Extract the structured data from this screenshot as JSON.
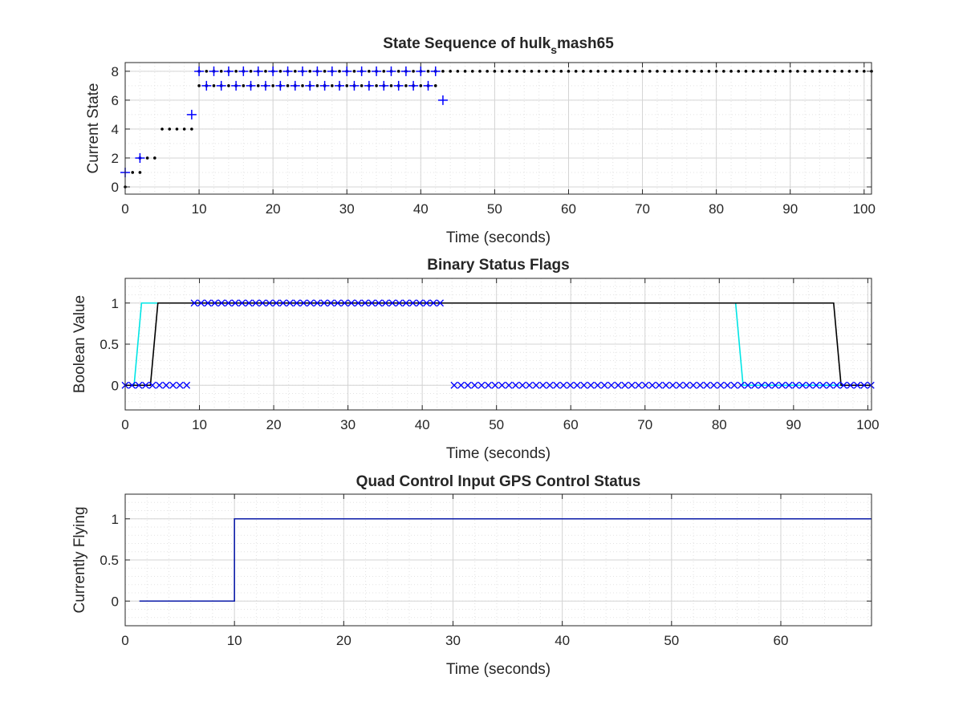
{
  "colors": {
    "black": "#000000",
    "blue": "#0000ff",
    "cyan": "#00e5e5",
    "navy": "#0a1aa8",
    "grid_major": "#d4d4d4",
    "grid_minor": "#e3e3e3",
    "axis": "#262626"
  },
  "chart_data": [
    {
      "type": "scatter",
      "title_main": "State Sequence of hulk",
      "title_sub": "s",
      "title_tail": "mash65",
      "xlabel": "Time (seconds)",
      "ylabel": "Current State",
      "xlim": [
        0,
        101
      ],
      "ylim": [
        -0.5,
        8.6
      ],
      "xticks": [
        0,
        10,
        20,
        30,
        40,
        50,
        60,
        70,
        80,
        90,
        100
      ],
      "yticks": [
        0,
        2,
        4,
        6,
        8
      ],
      "grid": "major and minor",
      "series": [
        {
          "marker": "dot",
          "color": "black",
          "points": [
            [
              0,
              0
            ],
            [
              1,
              1
            ],
            [
              2,
              1
            ],
            [
              2,
              2
            ],
            [
              3,
              2
            ],
            [
              4,
              2
            ],
            [
              5,
              4
            ],
            [
              6,
              4
            ],
            [
              7,
              4
            ],
            [
              8,
              4
            ],
            [
              9,
              4
            ],
            [
              10,
              7
            ],
            [
              11,
              7
            ],
            [
              12,
              7
            ],
            [
              13,
              7
            ],
            [
              14,
              7
            ],
            [
              15,
              7
            ],
            [
              16,
              7
            ],
            [
              17,
              7
            ],
            [
              18,
              7
            ],
            [
              19,
              7
            ],
            [
              20,
              7
            ],
            [
              21,
              7
            ],
            [
              22,
              7
            ],
            [
              23,
              7
            ],
            [
              24,
              7
            ],
            [
              25,
              7
            ],
            [
              26,
              7
            ],
            [
              27,
              7
            ],
            [
              28,
              7
            ],
            [
              29,
              7
            ],
            [
              30,
              7
            ],
            [
              31,
              7
            ],
            [
              32,
              7
            ],
            [
              33,
              7
            ],
            [
              34,
              7
            ],
            [
              35,
              7
            ],
            [
              36,
              7
            ],
            [
              37,
              7
            ],
            [
              38,
              7
            ],
            [
              39,
              7
            ],
            [
              40,
              7
            ],
            [
              41,
              7
            ],
            [
              42,
              7
            ],
            [
              10,
              8
            ],
            [
              11,
              8
            ],
            [
              12,
              8
            ],
            [
              13,
              8
            ],
            [
              14,
              8
            ],
            [
              15,
              8
            ],
            [
              16,
              8
            ],
            [
              17,
              8
            ],
            [
              18,
              8
            ],
            [
              19,
              8
            ],
            [
              20,
              8
            ],
            [
              21,
              8
            ],
            [
              22,
              8
            ],
            [
              23,
              8
            ],
            [
              24,
              8
            ],
            [
              25,
              8
            ],
            [
              26,
              8
            ],
            [
              27,
              8
            ],
            [
              28,
              8
            ],
            [
              29,
              8
            ],
            [
              30,
              8
            ],
            [
              31,
              8
            ],
            [
              32,
              8
            ],
            [
              33,
              8
            ],
            [
              34,
              8
            ],
            [
              35,
              8
            ],
            [
              36,
              8
            ],
            [
              37,
              8
            ],
            [
              38,
              8
            ],
            [
              39,
              8
            ],
            [
              40,
              8
            ],
            [
              41,
              8
            ],
            [
              42,
              8
            ],
            [
              43,
              8
            ],
            [
              44,
              8
            ],
            [
              45,
              8
            ],
            [
              46,
              8
            ],
            [
              47,
              8
            ],
            [
              48,
              8
            ],
            [
              49,
              8
            ],
            [
              50,
              8
            ],
            [
              51,
              8
            ],
            [
              52,
              8
            ],
            [
              53,
              8
            ],
            [
              54,
              8
            ],
            [
              55,
              8
            ],
            [
              56,
              8
            ],
            [
              57,
              8
            ],
            [
              58,
              8
            ],
            [
              59,
              8
            ],
            [
              60,
              8
            ],
            [
              61,
              8
            ],
            [
              62,
              8
            ],
            [
              63,
              8
            ],
            [
              64,
              8
            ],
            [
              65,
              8
            ],
            [
              66,
              8
            ],
            [
              67,
              8
            ],
            [
              68,
              8
            ],
            [
              69,
              8
            ],
            [
              70,
              8
            ],
            [
              71,
              8
            ],
            [
              72,
              8
            ],
            [
              73,
              8
            ],
            [
              74,
              8
            ],
            [
              75,
              8
            ],
            [
              76,
              8
            ],
            [
              77,
              8
            ],
            [
              78,
              8
            ],
            [
              79,
              8
            ],
            [
              80,
              8
            ],
            [
              81,
              8
            ],
            [
              82,
              8
            ],
            [
              83,
              8
            ],
            [
              84,
              8
            ],
            [
              85,
              8
            ],
            [
              86,
              8
            ],
            [
              87,
              8
            ],
            [
              88,
              8
            ],
            [
              89,
              8
            ],
            [
              90,
              8
            ],
            [
              91,
              8
            ],
            [
              92,
              8
            ],
            [
              93,
              8
            ],
            [
              94,
              8
            ],
            [
              95,
              8
            ],
            [
              96,
              8
            ],
            [
              97,
              8
            ],
            [
              98,
              8
            ],
            [
              99,
              8
            ],
            [
              100,
              8
            ],
            [
              101,
              8
            ]
          ]
        },
        {
          "marker": "plus",
          "color": "blue",
          "points": [
            [
              0,
              1
            ],
            [
              2,
              2
            ],
            [
              9,
              5
            ],
            [
              10,
              8
            ],
            [
              12,
              8
            ],
            [
              14,
              8
            ],
            [
              16,
              8
            ],
            [
              18,
              8
            ],
            [
              20,
              8
            ],
            [
              22,
              8
            ],
            [
              24,
              8
            ],
            [
              26,
              8
            ],
            [
              28,
              8
            ],
            [
              30,
              8
            ],
            [
              32,
              8
            ],
            [
              34,
              8
            ],
            [
              36,
              8
            ],
            [
              38,
              8
            ],
            [
              40,
              8
            ],
            [
              42,
              8
            ],
            [
              11,
              7
            ],
            [
              13,
              7
            ],
            [
              15,
              7
            ],
            [
              17,
              7
            ],
            [
              19,
              7
            ],
            [
              21,
              7
            ],
            [
              23,
              7
            ],
            [
              25,
              7
            ],
            [
              27,
              7
            ],
            [
              29,
              7
            ],
            [
              31,
              7
            ],
            [
              33,
              7
            ],
            [
              35,
              7
            ],
            [
              37,
              7
            ],
            [
              39,
              7
            ],
            [
              41,
              7
            ],
            [
              43,
              6
            ]
          ]
        }
      ]
    },
    {
      "type": "line",
      "title": "Binary Status Flags",
      "xlabel": "Time (seconds)",
      "ylabel": "Boolean Value",
      "xlim": [
        0,
        100.5
      ],
      "ylim": [
        -0.3,
        1.3
      ],
      "xticks": [
        0,
        10,
        20,
        30,
        40,
        50,
        60,
        70,
        80,
        90,
        100
      ],
      "yticks": [
        0,
        0.5,
        1
      ],
      "ytick_labels": [
        "0",
        "0.5",
        "1"
      ],
      "grid": "major and minor",
      "series": [
        {
          "style": "line",
          "color": "cyan",
          "points": [
            [
              1.2,
              0
            ],
            [
              2.2,
              1
            ],
            [
              82.2,
              1
            ],
            [
              83.2,
              0
            ],
            [
              100.5,
              0
            ]
          ]
        },
        {
          "style": "line",
          "color": "black",
          "points": [
            [
              0,
              0
            ],
            [
              3.4,
              0
            ],
            [
              4.4,
              1
            ],
            [
              95.4,
              1
            ],
            [
              96.4,
              0
            ],
            [
              100.5,
              0
            ]
          ]
        },
        {
          "style": "x-markers",
          "color": "blue",
          "start": 0,
          "end": 8.5,
          "step": 0.92,
          "value": 0
        },
        {
          "style": "x-markers",
          "color": "blue",
          "start": 9.3,
          "end": 43.3,
          "step": 0.92,
          "value": 1
        },
        {
          "style": "x-markers",
          "color": "blue",
          "start": 44.3,
          "end": 100.5,
          "step": 0.92,
          "value": 0
        }
      ]
    },
    {
      "type": "line",
      "title": "Quad Control Input GPS Control Status",
      "xlabel": "Time (seconds)",
      "ylabel": "Currently Flying",
      "xlim": [
        0,
        68.3
      ],
      "ylim": [
        -0.3,
        1.3
      ],
      "xticks": [
        0,
        10,
        20,
        30,
        40,
        50,
        60
      ],
      "yticks": [
        0,
        0.5,
        1
      ],
      "ytick_labels": [
        "0",
        "0.5",
        "1"
      ],
      "grid": "major and minor",
      "series": [
        {
          "style": "line",
          "color": "navy",
          "points": [
            [
              1.3,
              0
            ],
            [
              10,
              0
            ],
            [
              10,
              1
            ],
            [
              68.3,
              1
            ]
          ]
        }
      ]
    }
  ]
}
